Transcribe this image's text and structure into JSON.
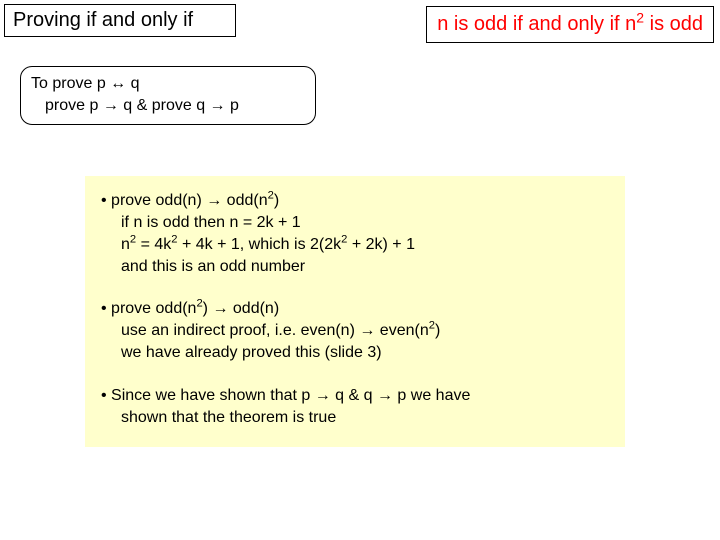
{
  "colors": {
    "background": "#ffffff",
    "proof_bg": "#ffffcc",
    "text_black": "#000000",
    "text_red": "#ff0000",
    "border": "#000000"
  },
  "title_left": "Proving if and only if",
  "title_right_pre": "n is odd if and only if n",
  "title_right_sup": "2",
  "title_right_post": " is odd",
  "rule": {
    "l1_pre": "To prove p ",
    "l1_arrow": "↔",
    "l1_post": " q",
    "l2_pre": "prove p ",
    "l2_arrow1": "→",
    "l2_mid": " q & prove q ",
    "l2_arrow2": "→",
    "l2_post": " p"
  },
  "proof": {
    "b1": {
      "l1_pre": "• prove odd(n) ",
      "l1_arrow": "→",
      "l1_mid": " odd(n",
      "l1_sup": "2",
      "l1_post": ")",
      "l2": "if n is odd then n = 2k + 1",
      "l3_pre": "n",
      "l3_sup1": "2",
      "l3_mid1": " = 4k",
      "l3_sup2": "2",
      "l3_mid2": " + 4k + 1, which is 2(2k",
      "l3_sup3": "2",
      "l3_post": " + 2k) + 1",
      "l4": "and this is an odd number"
    },
    "b2": {
      "l1_pre": "• prove odd(n",
      "l1_sup": "2",
      "l1_mid": ") ",
      "l1_arrow": "→",
      "l1_post": " odd(n)",
      "l2_pre": "use an indirect proof, i.e. even(n) ",
      "l2_arrow": "→",
      "l2_mid": " even(n",
      "l2_sup": "2",
      "l2_post": ")",
      "l3": "we have already proved this (slide 3)"
    },
    "b3": {
      "l1_pre": "• Since we have shown that p ",
      "l1_arrow1": "→",
      "l1_mid": " q & q ",
      "l1_arrow2": "→",
      "l1_post": " p we have",
      "l2": "shown that the theorem is true"
    }
  }
}
